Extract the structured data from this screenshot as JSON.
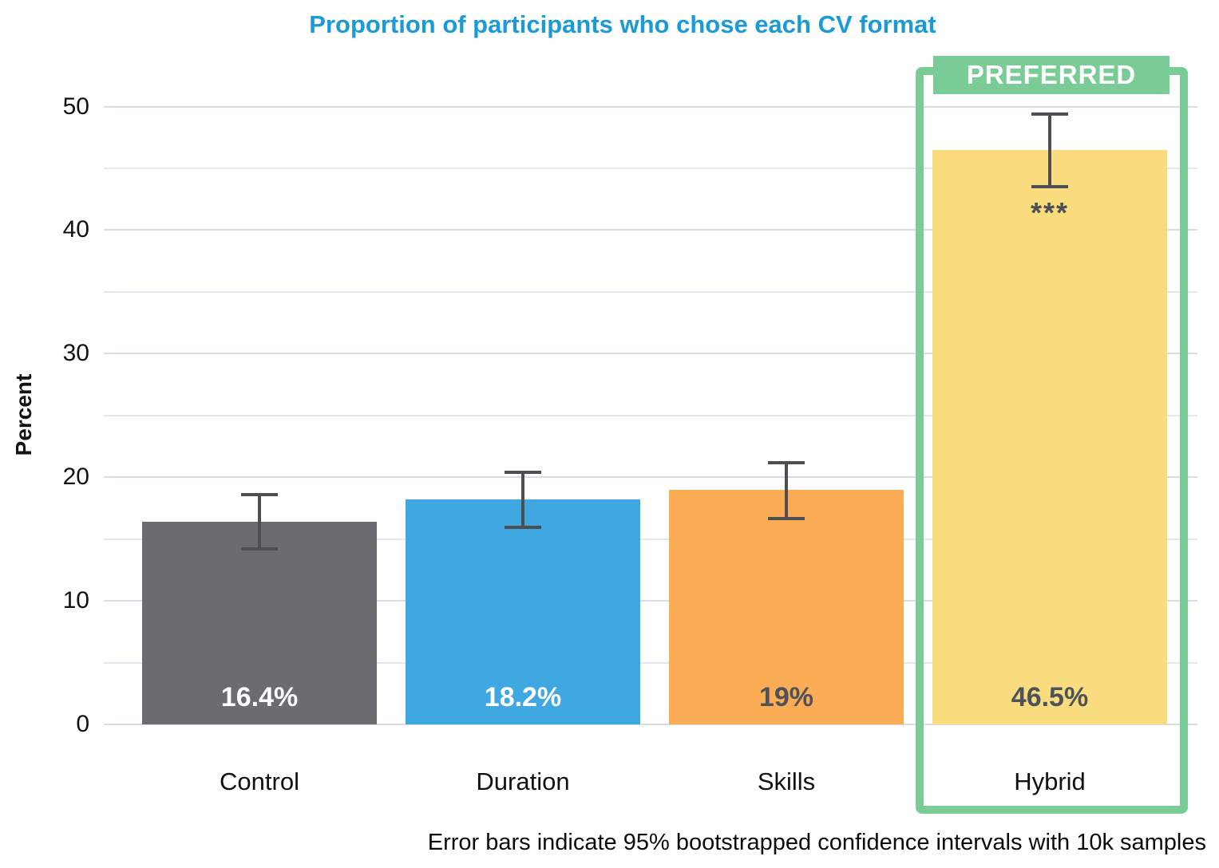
{
  "chart": {
    "title": "Proportion of participants who chose each CV format",
    "title_color": "#1b9ad8",
    "ylabel": "Percent",
    "footnote": "Error bars indicate 95% bootstrapped confidence intervals with 10k samples"
  },
  "annotations": {
    "preferred_label": "PREFERRED",
    "significance": "***",
    "frame_color": "#79cc96"
  },
  "chart_data": {
    "type": "bar",
    "title": "Proportion of participants who chose each CV format",
    "xlabel": "",
    "ylabel": "Percent",
    "categories": [
      "Control",
      "Duration",
      "Skills",
      "Hybrid"
    ],
    "values": [
      16.4,
      18.2,
      19.0,
      46.5
    ],
    "value_labels": [
      "16.4%",
      "18.2%",
      "19%",
      "46.5%"
    ],
    "bar_colors": [
      "#6b6c70",
      "#3fa8e0",
      "#fcac55",
      "#f9dc7d"
    ],
    "value_label_colors": [
      "#ffffff",
      "#ffffff",
      "#4d525b",
      "#4d525b"
    ],
    "error_bars": {
      "low": [
        14.1,
        15.8,
        16.5,
        43.4
      ],
      "high": [
        18.7,
        20.5,
        21.3,
        49.5
      ]
    },
    "error_bar_color": "#4f4f51",
    "yticks": [
      0,
      10,
      20,
      30,
      40,
      50
    ],
    "gridline_step": 5,
    "ylim": [
      0,
      52
    ],
    "grid": true,
    "legend": false,
    "highlighted_category": "Hybrid",
    "highlight_label": "PREFERRED",
    "significance_marker": {
      "category": "Hybrid",
      "text": "***"
    },
    "footnote": "Error bars indicate 95% bootstrapped confidence intervals with 10k samples"
  }
}
